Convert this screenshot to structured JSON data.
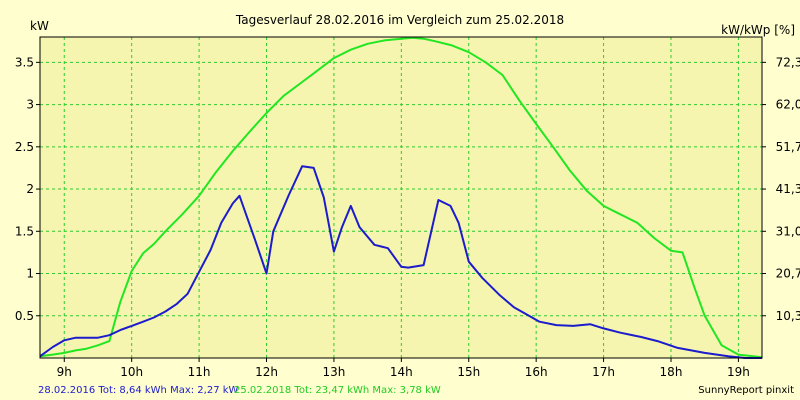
{
  "chart_data": {
    "type": "line",
    "title": "Tagesverlauf 28.02.2016 im Vergleich zum 25.02.2018",
    "ylabel_left": "kW",
    "ylabel_right": "kW/kWp [%]",
    "x_ticks": [
      "9h",
      "10h",
      "11h",
      "12h",
      "13h",
      "14h",
      "15h",
      "16h",
      "17h",
      "18h",
      "19h"
    ],
    "xlim": [
      8.64,
      19.35
    ],
    "ylim": [
      0,
      3.8
    ],
    "y_ticks": [
      0.5,
      1,
      1.5,
      2,
      2.5,
      3,
      3.5
    ],
    "y_tick_labels": [
      "0.5",
      "1",
      "1.5",
      "2",
      "2.5",
      "3",
      "3.5"
    ],
    "y_right_ticks": [
      10.3,
      20.7,
      31.0,
      41.3,
      51.7,
      62.0,
      72.3
    ],
    "y_right_tick_labels": [
      "10,3",
      "20,7",
      "31,0",
      "41,3",
      "51,7",
      "62,0",
      "72,3"
    ],
    "grid": true,
    "background": "#fffecf",
    "plot_background": "#f5f5b0",
    "grid_color": "#2ecc2e",
    "series": [
      {
        "name": "28.02.2016",
        "color": "#1c1ccc",
        "x": [
          8.64,
          8.83,
          9.0,
          9.17,
          9.33,
          9.5,
          9.67,
          9.83,
          10.0,
          10.17,
          10.33,
          10.5,
          10.67,
          10.83,
          11.0,
          11.17,
          11.33,
          11.5,
          11.6,
          11.83,
          12.0,
          12.1,
          12.33,
          12.53,
          12.7,
          12.85,
          13.0,
          13.12,
          13.25,
          13.38,
          13.6,
          13.8,
          14.0,
          14.1,
          14.33,
          14.55,
          14.73,
          14.85,
          15.0,
          15.2,
          15.45,
          15.67,
          15.85,
          16.05,
          16.3,
          16.55,
          16.8,
          17.0,
          17.25,
          17.55,
          17.8,
          18.1,
          18.5,
          18.85,
          19.1,
          19.35
        ],
        "y": [
          0.02,
          0.13,
          0.21,
          0.24,
          0.24,
          0.24,
          0.27,
          0.33,
          0.38,
          0.43,
          0.48,
          0.55,
          0.64,
          0.76,
          1.02,
          1.28,
          1.6,
          1.83,
          1.92,
          1.4,
          1.0,
          1.5,
          1.93,
          2.27,
          2.25,
          1.9,
          1.26,
          1.55,
          1.8,
          1.55,
          1.34,
          1.3,
          1.08,
          1.07,
          1.1,
          1.87,
          1.8,
          1.6,
          1.14,
          0.95,
          0.75,
          0.6,
          0.52,
          0.43,
          0.39,
          0.38,
          0.4,
          0.35,
          0.3,
          0.25,
          0.2,
          0.12,
          0.06,
          0.02,
          0.0,
          0.0
        ]
      },
      {
        "name": "25.02.2018",
        "color": "#22e622",
        "x": [
          8.64,
          8.83,
          9.0,
          9.17,
          9.33,
          9.5,
          9.67,
          9.83,
          10.0,
          10.17,
          10.33,
          10.5,
          10.75,
          11.0,
          11.25,
          11.5,
          11.75,
          12.0,
          12.25,
          12.5,
          12.75,
          13.0,
          13.25,
          13.5,
          13.75,
          14.0,
          14.17,
          14.33,
          14.5,
          14.75,
          15.0,
          15.25,
          15.5,
          15.75,
          16.0,
          16.25,
          16.5,
          16.75,
          17.0,
          17.2,
          17.5,
          17.75,
          18.0,
          18.17,
          18.35,
          18.5,
          18.75,
          19.0,
          19.35
        ],
        "y": [
          0.02,
          0.04,
          0.06,
          0.09,
          0.11,
          0.15,
          0.2,
          0.66,
          1.03,
          1.24,
          1.35,
          1.5,
          1.7,
          1.92,
          2.2,
          2.45,
          2.68,
          2.9,
          3.1,
          3.25,
          3.4,
          3.55,
          3.65,
          3.72,
          3.76,
          3.78,
          3.79,
          3.78,
          3.75,
          3.7,
          3.62,
          3.5,
          3.35,
          3.05,
          2.77,
          2.5,
          2.22,
          1.98,
          1.8,
          1.72,
          1.6,
          1.42,
          1.27,
          1.25,
          0.83,
          0.5,
          0.15,
          0.04,
          0.01
        ]
      }
    ],
    "footer_left": "28.02.2016 Tot: 8,64 kWh Max: 2,27 kW",
    "footer_right": "25.02.2018 Tot: 23,47 kWh Max: 3,78 kW",
    "credit": "SunnyReport pinxit"
  }
}
